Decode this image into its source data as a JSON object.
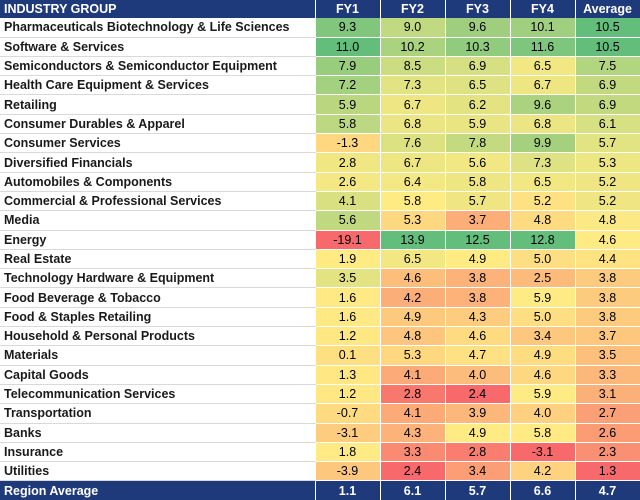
{
  "chart_data": {
    "type": "table",
    "columns": [
      "INDUSTRY GROUP",
      "FY1",
      "FY2",
      "FY3",
      "FY4",
      "Average"
    ],
    "rows": [
      {
        "name": "Pharmaceuticals Biotechnology & Life Sciences",
        "values": [
          "9.3",
          "9.0",
          "9.6",
          "10.1",
          "10.5"
        ]
      },
      {
        "name": "Software & Services",
        "values": [
          "11.0",
          "10.2",
          "10.3",
          "11.6",
          "10.5"
        ]
      },
      {
        "name": "Semiconductors & Semiconductor Equipment",
        "values": [
          "7.9",
          "8.5",
          "6.9",
          "6.5",
          "7.5"
        ]
      },
      {
        "name": "Health Care Equipment & Services",
        "values": [
          "7.2",
          "7.3",
          "6.5",
          "6.7",
          "6.9"
        ]
      },
      {
        "name": "Retailing",
        "values": [
          "5.9",
          "6.7",
          "6.2",
          "9.6",
          "6.9"
        ]
      },
      {
        "name": "Consumer Durables & Apparel",
        "values": [
          "5.8",
          "6.8",
          "5.9",
          "6.8",
          "6.1"
        ]
      },
      {
        "name": "Consumer Services",
        "values": [
          "-1.3",
          "7.6",
          "7.8",
          "9.9",
          "5.7"
        ]
      },
      {
        "name": "Diversified Financials",
        "values": [
          "2.8",
          "6.7",
          "5.6",
          "7.3",
          "5.3"
        ]
      },
      {
        "name": "Automobiles & Components",
        "values": [
          "2.6",
          "6.4",
          "5.8",
          "6.5",
          "5.2"
        ]
      },
      {
        "name": "Commercial & Professional Services",
        "values": [
          "4.1",
          "5.8",
          "5.7",
          "5.2",
          "5.2"
        ]
      },
      {
        "name": "Media",
        "values": [
          "5.6",
          "5.3",
          "3.7",
          "4.8",
          "4.8"
        ]
      },
      {
        "name": "Energy",
        "values": [
          "-19.1",
          "13.9",
          "12.5",
          "12.8",
          "4.6"
        ]
      },
      {
        "name": "Real Estate",
        "values": [
          "1.9",
          "6.5",
          "4.9",
          "5.0",
          "4.4"
        ]
      },
      {
        "name": "Technology Hardware & Equipment",
        "values": [
          "3.5",
          "4.6",
          "3.8",
          "2.5",
          "3.8"
        ]
      },
      {
        "name": "Food Beverage & Tobacco",
        "values": [
          "1.6",
          "4.2",
          "3.8",
          "5.9",
          "3.8"
        ]
      },
      {
        "name": "Food & Staples Retailing",
        "values": [
          "1.6",
          "4.9",
          "4.3",
          "5.0",
          "3.8"
        ]
      },
      {
        "name": "Household & Personal Products",
        "values": [
          "1.2",
          "4.8",
          "4.6",
          "3.4",
          "3.7"
        ]
      },
      {
        "name": "Materials",
        "values": [
          "0.1",
          "5.3",
          "4.7",
          "4.9",
          "3.5"
        ]
      },
      {
        "name": "Capital Goods",
        "values": [
          "1.3",
          "4.1",
          "4.0",
          "4.6",
          "3.3"
        ]
      },
      {
        "name": "Telecommunication Services",
        "values": [
          "1.2",
          "2.8",
          "2.4",
          "5.9",
          "3.1"
        ]
      },
      {
        "name": "Transportation",
        "values": [
          "-0.7",
          "4.1",
          "3.9",
          "4.0",
          "2.7"
        ]
      },
      {
        "name": "Banks",
        "values": [
          "-3.1",
          "4.3",
          "4.9",
          "5.8",
          "2.6"
        ]
      },
      {
        "name": "Insurance",
        "values": [
          "1.8",
          "3.3",
          "2.8",
          "-3.1",
          "2.3"
        ]
      },
      {
        "name": "Utilities",
        "values": [
          "-3.9",
          "2.4",
          "3.4",
          "4.2",
          "1.3"
        ]
      }
    ],
    "footer": {
      "name": "Region Average",
      "values": [
        "1.1",
        "6.1",
        "5.7",
        "6.6",
        "4.7"
      ]
    },
    "colors": {
      "header_bg": "#1f3a7a",
      "header_text": "#ffffff",
      "low": "#f8696b",
      "mid": "#ffeb84",
      "high": "#63be7b"
    }
  }
}
